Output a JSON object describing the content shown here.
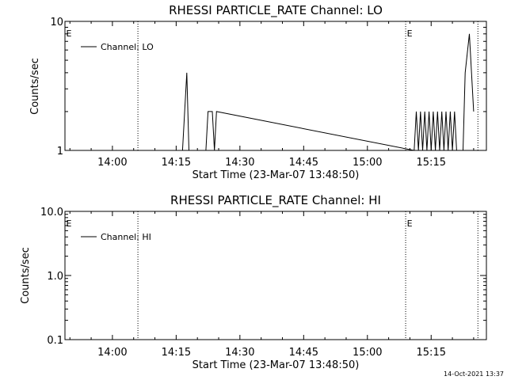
{
  "timestamp": "14-Oct-2021 13:37",
  "chart_data": [
    {
      "type": "line",
      "title": "RHESSI PARTICLE_RATE Channel: LO",
      "xlabel": "Start Time (23-Mar-07 13:48:50)",
      "ylabel": "Counts/sec",
      "yscale": "log",
      "ylim": [
        1,
        10
      ],
      "ytick_values": [
        1,
        10
      ],
      "ytick_labels": [
        "1",
        "10"
      ],
      "xlim": [
        "13:48:50",
        "15:28:00"
      ],
      "xtick_labels": [
        "14:00",
        "14:15",
        "14:30",
        "14:45",
        "15:00",
        "15:15"
      ],
      "event_marker_times": [
        "14:06",
        "15:09",
        "15:26"
      ],
      "event_marker_labels": [
        "E",
        "E"
      ],
      "legend": {
        "position": "top-left",
        "entries": [
          "Channel: LO"
        ]
      },
      "series": [
        {
          "name": "Channel: LO",
          "x": [
            "14:16:30",
            "14:17:00",
            "14:17:30",
            "14:18:00",
            "14:22:00",
            "14:22:30",
            "14:23:30",
            "14:24:00",
            "14:24:30",
            "15:11:00",
            "15:11:30",
            "15:12:00",
            "15:12:30",
            "15:13:00",
            "15:13:30",
            "15:14:00",
            "15:14:30",
            "15:15:00",
            "15:15:30",
            "15:16:00",
            "15:16:30",
            "15:17:00",
            "15:17:30",
            "15:18:00",
            "15:18:30",
            "15:19:00",
            "15:19:30",
            "15:20:00",
            "15:20:30",
            "15:21:00",
            "15:22:30",
            "15:23:00",
            "15:24:00",
            "15:24:30",
            "15:25:00"
          ],
          "y": [
            1,
            2,
            4,
            1,
            1,
            2,
            2,
            1,
            2,
            1,
            2,
            1,
            2,
            1,
            2,
            1,
            2,
            1,
            2,
            1,
            2,
            1,
            2,
            1,
            2,
            1,
            2,
            1,
            2,
            1,
            1,
            4,
            8,
            4,
            2
          ]
        }
      ]
    },
    {
      "type": "line",
      "title": "RHESSI PARTICLE_RATE Channel: HI",
      "xlabel": "Start Time (23-Mar-07 13:48:50)",
      "ylabel": "Counts/sec",
      "yscale": "log",
      "ylim": [
        0.1,
        10
      ],
      "ytick_values": [
        0.1,
        1,
        10
      ],
      "ytick_labels": [
        "0.1",
        "1.0",
        "10.0"
      ],
      "xlim": [
        "13:48:50",
        "15:28:00"
      ],
      "xtick_labels": [
        "14:00",
        "14:15",
        "14:30",
        "14:45",
        "15:00",
        "15:15"
      ],
      "event_marker_times": [
        "14:06",
        "15:09",
        "15:26"
      ],
      "event_marker_labels": [
        "E",
        "E"
      ],
      "legend": {
        "position": "top-left",
        "entries": [
          "Channel: HI"
        ]
      },
      "series": [
        {
          "name": "Channel: HI",
          "x": [],
          "y": []
        }
      ]
    }
  ]
}
